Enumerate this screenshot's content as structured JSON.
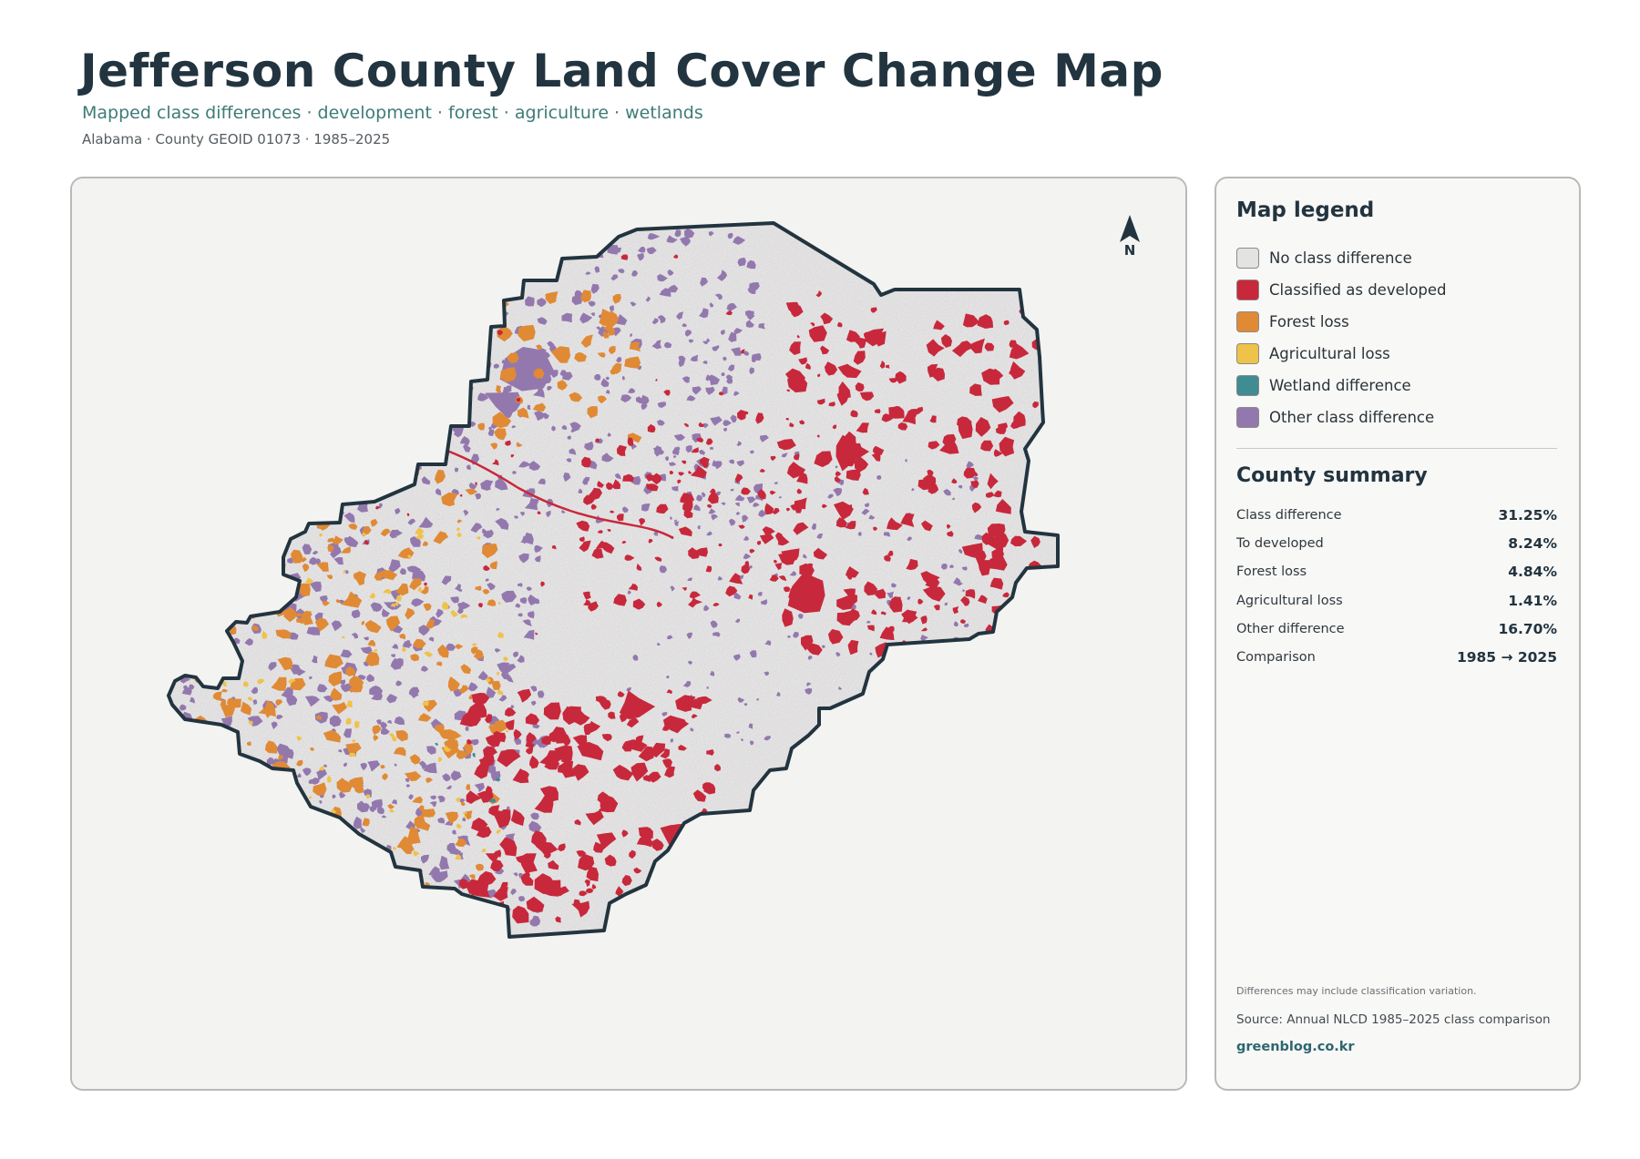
{
  "header": {
    "title": "Jefferson County Land Cover Change Map",
    "subtitle": "Mapped class differences · development · forest · agriculture · wetlands",
    "meta": "Alabama · County GEOID 01073 · 1985–2025"
  },
  "map": {
    "north_label": "N",
    "colors": {
      "background": "#f3f3f1",
      "county_fill": "#e4e4e2",
      "outline": "#22343f"
    }
  },
  "legend": {
    "title": "Map legend",
    "items": [
      {
        "label": "No class difference",
        "color": "#e3e3e1"
      },
      {
        "label": "Classified as developed",
        "color": "#c8283b"
      },
      {
        "label": "Forest loss",
        "color": "#e08a36"
      },
      {
        "label": "Agricultural loss",
        "color": "#efc24a"
      },
      {
        "label": "Wetland difference",
        "color": "#3f8c92"
      },
      {
        "label": "Other class difference",
        "color": "#9378ae"
      }
    ]
  },
  "summary": {
    "title": "County summary",
    "rows": [
      {
        "label": "Class difference",
        "value": "31.25%"
      },
      {
        "label": "To developed",
        "value": "8.24%"
      },
      {
        "label": "Forest loss",
        "value": "4.84%"
      },
      {
        "label": "Agricultural loss",
        "value": "1.41%"
      },
      {
        "label": "Other difference",
        "value": "16.70%"
      },
      {
        "label": "Comparison",
        "value": "1985 → 2025"
      }
    ]
  },
  "footer": {
    "note": "Differences may include classification variation.",
    "source": "Source: Annual NLCD 1985–2025 class comparison",
    "credit": "greenblog.co.kr"
  }
}
